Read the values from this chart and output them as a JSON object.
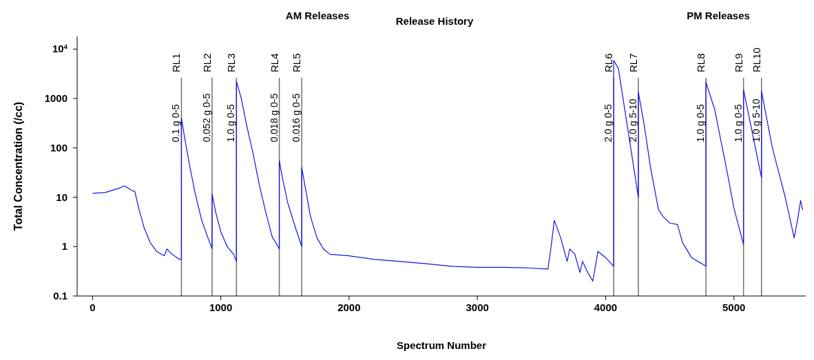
{
  "chart_data": {
    "type": "line",
    "title": "Release History",
    "xlabel": "Spectrum Number",
    "ylabel": "Total Concentration (/cc)",
    "x": [
      0,
      100,
      200,
      250,
      300,
      330,
      360,
      400,
      450,
      500,
      560,
      580,
      620,
      680,
      693,
      693,
      720,
      760,
      800,
      850,
      900,
      932,
      932,
      960,
      1000,
      1050,
      1100,
      1122,
      1122,
      1160,
      1200,
      1250,
      1300,
      1350,
      1400,
      1456,
      1456,
      1480,
      1520,
      1580,
      1631,
      1631,
      1660,
      1700,
      1750,
      1800,
      1850,
      2000,
      2200,
      2400,
      2600,
      2800,
      3000,
      3200,
      3400,
      3550,
      3570,
      3600,
      3650,
      3700,
      3720,
      3760,
      3800,
      3820,
      3860,
      3900,
      3920,
      3940,
      4000,
      4063,
      4063,
      4100,
      4255,
      4255,
      4300,
      4350,
      4412,
      4450,
      4500,
      4560,
      4600,
      4670,
      4782,
      4782,
      4850,
      4950,
      5000,
      5075,
      5075,
      5215,
      5215,
      5300,
      5400,
      5470,
      5500,
      5520,
      5535
    ],
    "series": [
      {
        "color": "#1414e6",
        "values": [
          12,
          12.5,
          15,
          17,
          14,
          13,
          6,
          2.5,
          1.2,
          0.8,
          0.65,
          0.9,
          0.7,
          0.55,
          0.55,
          400,
          150,
          40,
          12,
          3.5,
          1.5,
          0.9,
          11.6,
          5,
          2,
          1,
          0.7,
          0.5,
          2200,
          1000,
          300,
          80,
          18,
          5,
          1.6,
          0.9,
          55,
          25,
          8,
          2.5,
          1,
          40,
          15,
          4,
          1.5,
          0.9,
          0.7,
          0.65,
          0.55,
          0.5,
          0.45,
          0.4,
          0.38,
          0.38,
          0.37,
          0.35,
          0.8,
          3.4,
          1.5,
          0.5,
          0.9,
          0.7,
          0.3,
          0.5,
          0.3,
          0.2,
          0.4,
          0.8,
          0.6,
          0.4,
          5900,
          4000,
          10,
          1350,
          300,
          40,
          5.6,
          4,
          3,
          2.8,
          1.2,
          0.6,
          0.4,
          2150,
          600,
          30,
          6,
          1.1,
          1500,
          25,
          1400,
          100,
          10,
          1.5,
          4,
          8.6,
          5.5
        ]
      }
    ],
    "ylim": [
      0.1,
      18000
    ],
    "yticks": [
      0.1,
      1,
      10,
      100,
      1000,
      {
        "value": 10000,
        "label": "10$^{4}$"
      }
    ],
    "xlim": [
      -120,
      5560
    ],
    "xticks": [
      0,
      1000,
      2000,
      3000,
      4000,
      5000
    ],
    "log": "y",
    "marker": "none",
    "line_style": "solid",
    "ref_lines": [
      {
        "axis": "x",
        "value": 693,
        "label": "RL1",
        "color": "#707070"
      },
      {
        "axis": "x",
        "value": 932,
        "label": "RL2",
        "color": "#707070"
      },
      {
        "axis": "x",
        "value": 1122,
        "label": "RL3",
        "color": "#707070"
      },
      {
        "axis": "x",
        "value": 1456,
        "label": "RL4",
        "color": "#707070"
      },
      {
        "axis": "x",
        "value": 1631,
        "label": "RL5",
        "color": "#707070"
      },
      {
        "axis": "x",
        "value": 4063,
        "label": "RL6",
        "color": "#707070"
      },
      {
        "axis": "x",
        "value": 4255,
        "label": "RL7",
        "color": "#707070"
      },
      {
        "axis": "x",
        "value": 4782,
        "label": "RL8",
        "color": "#707070"
      },
      {
        "axis": "x",
        "value": 5075,
        "label": "RL9",
        "color": "#707070"
      },
      {
        "axis": "x",
        "value": 5215,
        "label": "RL10",
        "color": "#707070"
      }
    ],
    "annotations": [
      "AM Releases",
      "PM Releases",
      {
        "text": "0.1 g 0-5",
        "x": 693,
        "y": 130
      },
      {
        "text": "0.052 g 0-5",
        "x": 932,
        "y": 130
      },
      {
        "text": "1.0 g 0-5",
        "x": 1122,
        "y": 130
      },
      {
        "text": "0.018 g 0-5",
        "x": 1456,
        "y": 130
      },
      {
        "text": "0.016 g 0-5",
        "x": 1631,
        "y": 130
      },
      {
        "text": "2.0 g 0-5",
        "x": 4063,
        "y": 130
      },
      {
        "text": "2.0 g 5-10",
        "x": 4255,
        "y": 130
      },
      {
        "text": "1.0 g 0-5",
        "x": 4782,
        "y": 130
      },
      {
        "text": "1.0 g 0-5",
        "x": 5075,
        "y": 130
      },
      {
        "text": "1.0 g 5-10",
        "x": 5215,
        "y": 130
      }
    ]
  }
}
